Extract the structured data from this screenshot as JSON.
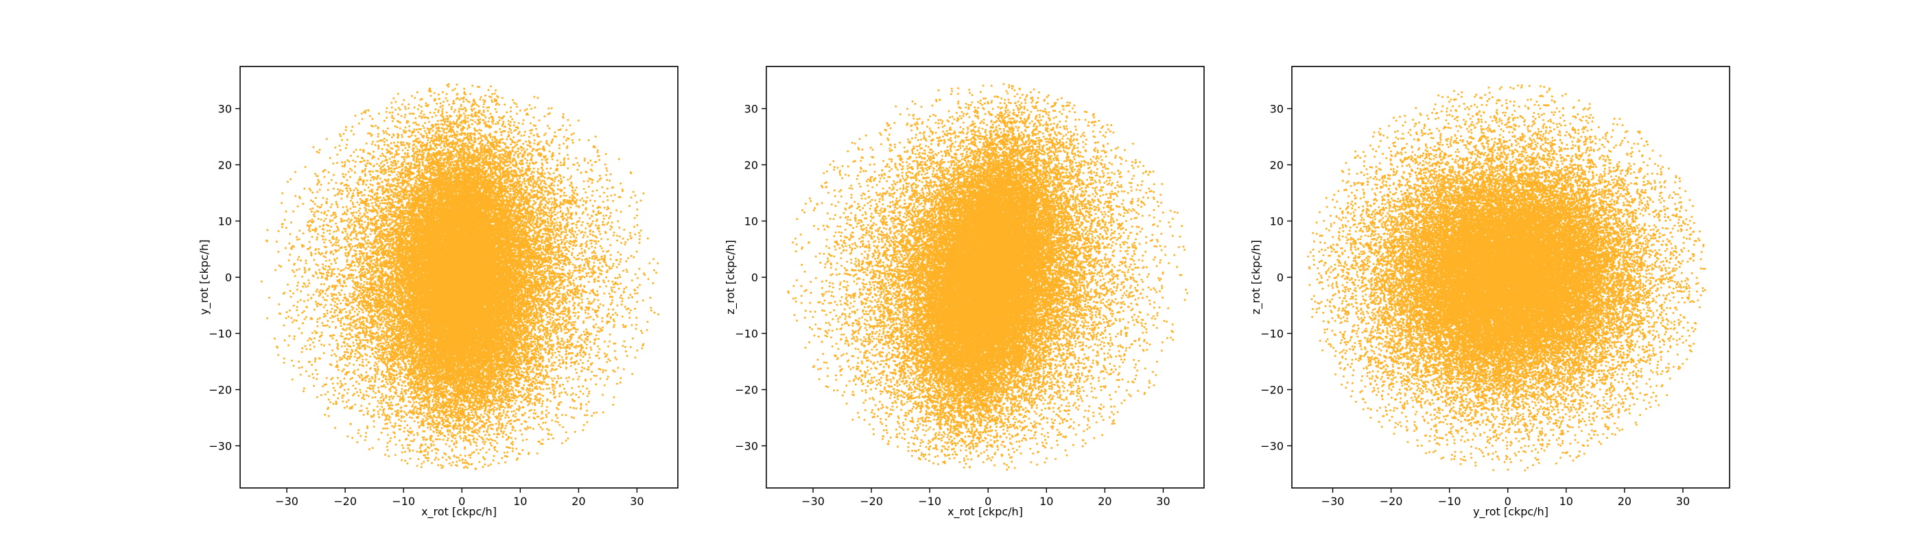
{
  "figure": {
    "background": "#ffffff",
    "point_color": "#FFA500"
  },
  "chart_data": [
    {
      "type": "scatter",
      "title": "",
      "xlabel": "x_rot [ckpc/h]",
      "ylabel": "y_rot [ckpc/h]",
      "xlim": [
        -38,
        37
      ],
      "ylim": [
        -37.5,
        37.5
      ],
      "xticks": [
        -30,
        -20,
        -10,
        0,
        10,
        20,
        30
      ],
      "yticks": [
        -30,
        -20,
        -10,
        0,
        10,
        20,
        30
      ],
      "grid": false,
      "legend": "none",
      "color": "#FFA500",
      "distribution": {
        "n_points": 42000,
        "max_radius": 34.5,
        "core_sigma": [
          5,
          11
        ],
        "halo_sigma": [
          11.5,
          13
        ],
        "core_fraction": 0.55,
        "rotation_deg": 0
      }
    },
    {
      "type": "scatter",
      "title": "",
      "xlabel": "x_rot [ckpc/h]",
      "ylabel": "z_rot [ckpc/h]",
      "xlim": [
        -38,
        37
      ],
      "ylim": [
        -37.5,
        37.5
      ],
      "xticks": [
        -30,
        -20,
        -10,
        0,
        10,
        20,
        30
      ],
      "yticks": [
        -30,
        -20,
        -10,
        0,
        10,
        20,
        30
      ],
      "grid": false,
      "legend": "none",
      "color": "#FFA500",
      "distribution": {
        "n_points": 42000,
        "max_radius": 34.5,
        "core_sigma": [
          5,
          11.5
        ],
        "halo_sigma": [
          11.5,
          13
        ],
        "core_fraction": 0.55,
        "rotation_deg": 12
      }
    },
    {
      "type": "scatter",
      "title": "",
      "xlabel": "y_rot [ckpc/h]",
      "ylabel": "z_rot [ckpc/h]",
      "xlim": [
        -37,
        38
      ],
      "ylim": [
        -37.5,
        37.5
      ],
      "xticks": [
        -30,
        -20,
        -10,
        0,
        10,
        20,
        30
      ],
      "yticks": [
        -30,
        -20,
        -10,
        0,
        10,
        20,
        30
      ],
      "grid": false,
      "legend": "none",
      "color": "#FFA500",
      "distribution": {
        "n_points": 42000,
        "max_radius": 34.5,
        "core_sigma": [
          9,
          8
        ],
        "halo_sigma": [
          13,
          13
        ],
        "core_fraction": 0.5,
        "rotation_deg": 0
      }
    }
  ]
}
